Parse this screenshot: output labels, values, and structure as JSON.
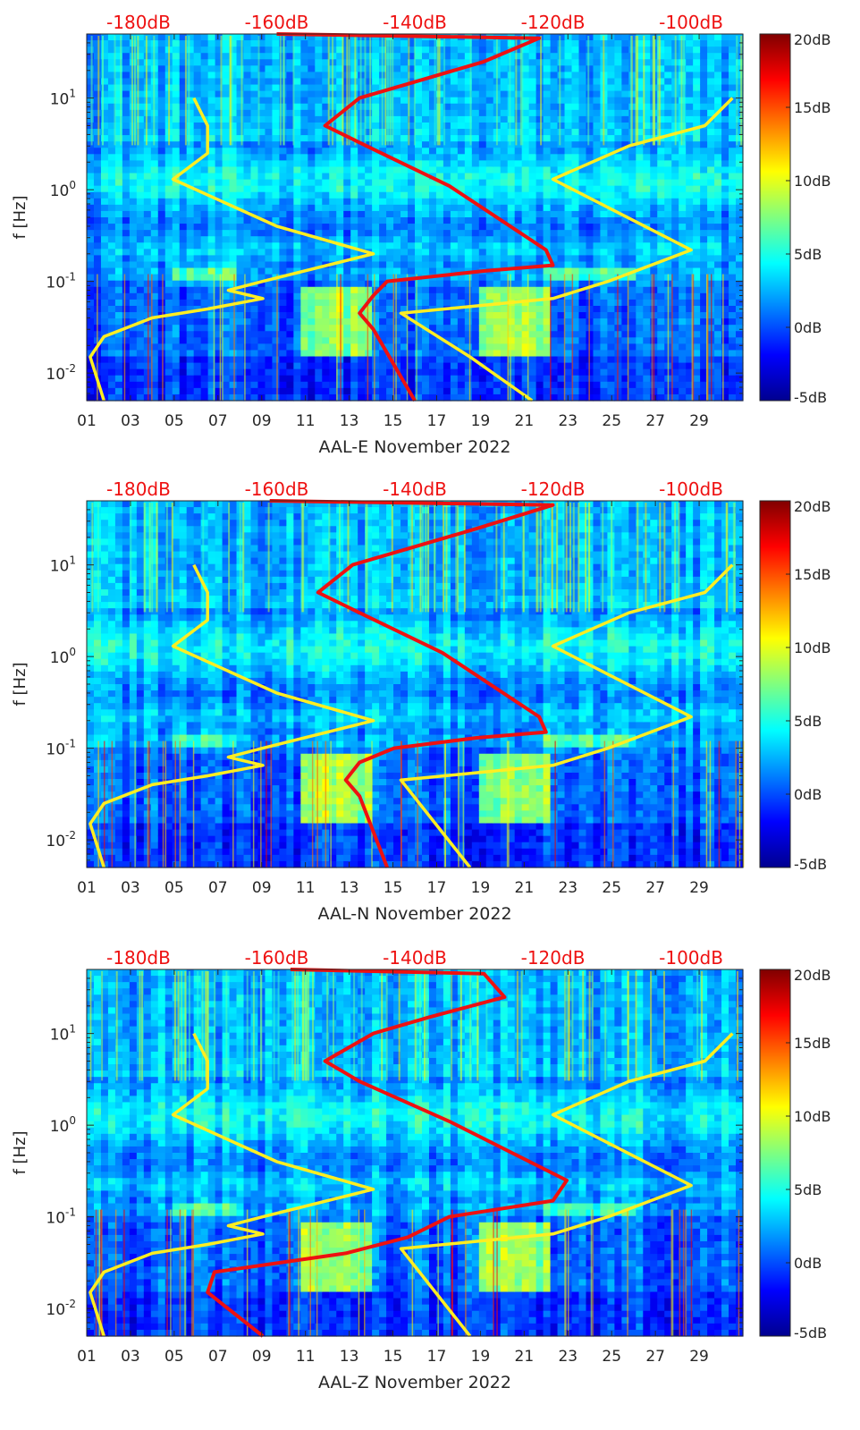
{
  "chart_data": [
    {
      "type": "heatmap",
      "station": "AAL-E",
      "xlabel": "AAL-E November 2022",
      "ylabel": "f [Hz]",
      "x_ticks": [
        "01",
        "03",
        "05",
        "07",
        "09",
        "11",
        "13",
        "15",
        "17",
        "19",
        "21",
        "23",
        "25",
        "27",
        "29"
      ],
      "x_range_days": [
        1,
        31
      ],
      "y_scale": "log",
      "y_range_hz": [
        0.005,
        50
      ],
      "y_ticks": [
        {
          "v": 0.01,
          "b": "10",
          "e": "-2"
        },
        {
          "v": 0.1,
          "b": "10",
          "e": "-1"
        },
        {
          "v": 1,
          "b": "10",
          "e": "0"
        },
        {
          "v": 10,
          "b": "10",
          "e": "1"
        }
      ],
      "top_ticks": [
        "-180dB",
        "-160dB",
        "-140dB",
        "-120dB",
        "-100dB"
      ],
      "top_range_db": [
        -187.5,
        -92.5
      ],
      "colorbar": {
        "ticks": [
          "20dB",
          "15dB",
          "10dB",
          "5dB",
          "0dB",
          "-5dB"
        ],
        "range_db": [
          -5,
          20
        ]
      },
      "yellow_low_model_db": [
        [
          -185,
          0.005
        ],
        [
          -187,
          0.015
        ],
        [
          -185,
          0.025
        ],
        [
          -178,
          0.04
        ],
        [
          -170,
          0.05
        ],
        [
          -162,
          0.065
        ],
        [
          -167,
          0.08
        ],
        [
          -162,
          0.1
        ],
        [
          -146,
          0.2
        ],
        [
          -160,
          0.4
        ],
        [
          -175,
          1.3
        ],
        [
          -170,
          2.5
        ],
        [
          -170,
          5
        ],
        [
          -172,
          10
        ]
      ],
      "yellow_high_model_db": [
        [
          -123,
          0.005
        ],
        [
          -132,
          0.015
        ],
        [
          -142,
          0.045
        ],
        [
          -120,
          0.065
        ],
        [
          -112,
          0.1
        ],
        [
          -100,
          0.22
        ],
        [
          -120,
          1.3
        ],
        [
          -109,
          3
        ],
        [
          -98,
          5
        ],
        [
          -94,
          10
        ]
      ],
      "red_median_db": [
        [
          -140,
          0.005
        ],
        [
          -146,
          0.03
        ],
        [
          -148,
          0.045
        ],
        [
          -146,
          0.07
        ],
        [
          -144,
          0.1
        ],
        [
          -130,
          0.13
        ],
        [
          -120,
          0.15
        ],
        [
          -121,
          0.22
        ],
        [
          -135,
          1.1
        ],
        [
          -147,
          3
        ],
        [
          -153,
          5
        ],
        [
          -148,
          10
        ],
        [
          -140,
          15
        ],
        [
          -130,
          25
        ],
        [
          -122,
          45
        ],
        [
          -160,
          50
        ]
      ]
    },
    {
      "type": "heatmap",
      "station": "AAL-N",
      "xlabel": "AAL-N November 2022",
      "ylabel": "f [Hz]",
      "x_ticks": [
        "01",
        "03",
        "05",
        "07",
        "09",
        "11",
        "13",
        "15",
        "17",
        "19",
        "21",
        "23",
        "25",
        "27",
        "29"
      ],
      "x_range_days": [
        1,
        31
      ],
      "y_scale": "log",
      "y_range_hz": [
        0.005,
        50
      ],
      "y_ticks": [
        {
          "v": 0.01,
          "b": "10",
          "e": "-2"
        },
        {
          "v": 0.1,
          "b": "10",
          "e": "-1"
        },
        {
          "v": 1,
          "b": "10",
          "e": "0"
        },
        {
          "v": 10,
          "b": "10",
          "e": "1"
        }
      ],
      "top_ticks": [
        "-180dB",
        "-160dB",
        "-140dB",
        "-120dB",
        "-100dB"
      ],
      "top_range_db": [
        -187.5,
        -92.5
      ],
      "colorbar": {
        "ticks": [
          "20dB",
          "15dB",
          "10dB",
          "5dB",
          "0dB",
          "-5dB"
        ],
        "range_db": [
          -5,
          20
        ]
      },
      "yellow_low_model_db": [
        [
          -185,
          0.005
        ],
        [
          -187,
          0.015
        ],
        [
          -185,
          0.025
        ],
        [
          -178,
          0.04
        ],
        [
          -170,
          0.05
        ],
        [
          -162,
          0.065
        ],
        [
          -167,
          0.08
        ],
        [
          -162,
          0.1
        ],
        [
          -146,
          0.2
        ],
        [
          -160,
          0.4
        ],
        [
          -175,
          1.3
        ],
        [
          -170,
          2.5
        ],
        [
          -170,
          5
        ],
        [
          -172,
          10
        ]
      ],
      "yellow_high_model_db": [
        [
          -132,
          0.005
        ],
        [
          -142,
          0.045
        ],
        [
          -120,
          0.065
        ],
        [
          -112,
          0.1
        ],
        [
          -100,
          0.22
        ],
        [
          -120,
          1.3
        ],
        [
          -109,
          3
        ],
        [
          -98,
          5
        ],
        [
          -94,
          10
        ]
      ],
      "red_median_db": [
        [
          -144,
          0.005
        ],
        [
          -148,
          0.03
        ],
        [
          -150,
          0.045
        ],
        [
          -148,
          0.07
        ],
        [
          -143,
          0.1
        ],
        [
          -131,
          0.13
        ],
        [
          -121,
          0.15
        ],
        [
          -122,
          0.22
        ],
        [
          -136,
          1.1
        ],
        [
          -148,
          3
        ],
        [
          -154,
          5
        ],
        [
          -149,
          10
        ],
        [
          -141,
          15
        ],
        [
          -131,
          25
        ],
        [
          -120,
          45
        ],
        [
          -161,
          50
        ]
      ]
    },
    {
      "type": "heatmap",
      "station": "AAL-Z",
      "xlabel": "AAL-Z November 2022",
      "ylabel": "f [Hz]",
      "x_ticks": [
        "01",
        "03",
        "05",
        "07",
        "09",
        "11",
        "13",
        "15",
        "17",
        "19",
        "21",
        "23",
        "25",
        "27",
        "29"
      ],
      "x_range_days": [
        1,
        31
      ],
      "y_scale": "log",
      "y_range_hz": [
        0.005,
        50
      ],
      "y_ticks": [
        {
          "v": 0.01,
          "b": "10",
          "e": "-2"
        },
        {
          "v": 0.1,
          "b": "10",
          "e": "-1"
        },
        {
          "v": 1,
          "b": "10",
          "e": "0"
        },
        {
          "v": 10,
          "b": "10",
          "e": "1"
        }
      ],
      "top_ticks": [
        "-180dB",
        "-160dB",
        "-140dB",
        "-120dB",
        "-100dB"
      ],
      "top_range_db": [
        -187.5,
        -92.5
      ],
      "colorbar": {
        "ticks": [
          "20dB",
          "15dB",
          "10dB",
          "5dB",
          "0dB",
          "-5dB"
        ],
        "range_db": [
          -5,
          20
        ]
      },
      "yellow_low_model_db": [
        [
          -185,
          0.005
        ],
        [
          -187,
          0.015
        ],
        [
          -185,
          0.025
        ],
        [
          -178,
          0.04
        ],
        [
          -170,
          0.05
        ],
        [
          -162,
          0.065
        ],
        [
          -167,
          0.08
        ],
        [
          -162,
          0.1
        ],
        [
          -146,
          0.2
        ],
        [
          -160,
          0.4
        ],
        [
          -175,
          1.3
        ],
        [
          -170,
          2.5
        ],
        [
          -170,
          5
        ],
        [
          -172,
          10
        ]
      ],
      "yellow_high_model_db": [
        [
          -132,
          0.005
        ],
        [
          -142,
          0.045
        ],
        [
          -120,
          0.065
        ],
        [
          -112,
          0.1
        ],
        [
          -100,
          0.22
        ],
        [
          -120,
          1.3
        ],
        [
          -109,
          3
        ],
        [
          -98,
          5
        ],
        [
          -94,
          10
        ]
      ],
      "red_median_db": [
        [
          -162,
          0.005
        ],
        [
          -170,
          0.015
        ],
        [
          -169,
          0.025
        ],
        [
          -150,
          0.04
        ],
        [
          -141,
          0.06
        ],
        [
          -135,
          0.1
        ],
        [
          -120,
          0.15
        ],
        [
          -118,
          0.25
        ],
        [
          -135,
          1.1
        ],
        [
          -148,
          3
        ],
        [
          -153,
          5
        ],
        [
          -146,
          10
        ],
        [
          -138,
          15
        ],
        [
          -127,
          25
        ],
        [
          -130,
          45
        ],
        [
          -158,
          50
        ]
      ]
    }
  ]
}
